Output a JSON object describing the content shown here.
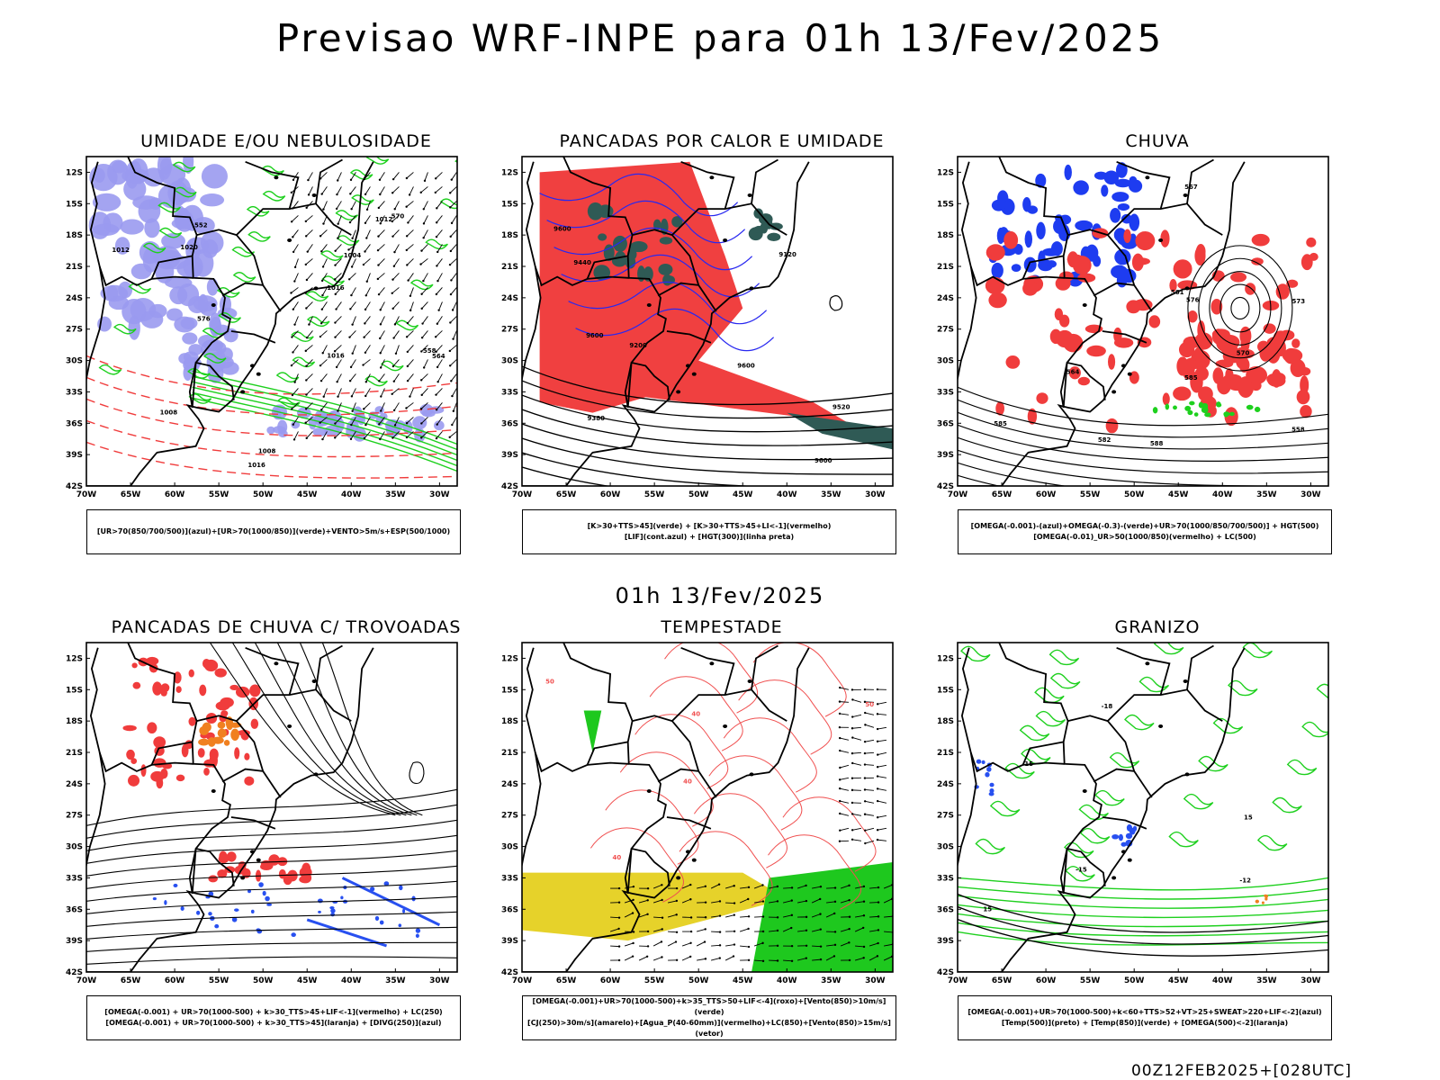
{
  "title": "Previsao WRF-INPE  para 01h 13/Fev/2025",
  "subtitle": "01h 13/Fev/2025",
  "footer": "00Z12FEB2025+[028UTC]",
  "axis": {
    "lat_labels": [
      "12S",
      "15S",
      "18S",
      "21S",
      "24S",
      "27S",
      "30S",
      "33S",
      "36S",
      "39S",
      "42S"
    ],
    "lon_labels": [
      "70W",
      "65W",
      "60W",
      "55W",
      "50W",
      "45W",
      "40W",
      "35W",
      "30W"
    ]
  },
  "panels": [
    {
      "title": "UMIDADE E/OU NEBULOSIDADE",
      "legend": [
        "[UR>70(850/700/500)](azul)+[UR>70(1000/850)](verde)+VENTO>5m/s+ESP(500/1000)"
      ],
      "contour_labels": [
        "1012",
        "1020",
        "1016",
        "1008",
        "1012",
        "1016",
        "1016",
        "576",
        "570",
        "564",
        "558",
        "552",
        "1004",
        "1008"
      ],
      "colors": {
        "blue": "#9a9af0",
        "green": "#1ed01e",
        "red": "#f03c3c"
      }
    },
    {
      "title": "PANCADAS POR CALOR E UMIDADE",
      "legend": [
        "[K>30+TTS>45](verde) + [K>30+TTS>45+LI<-1](vermelho)",
        "[LIF](cont.azul) + [HGT(300)](linha preta)"
      ],
      "contour_labels": [
        "9600",
        "9600",
        "9600",
        "9600",
        "9520",
        "9440",
        "9380",
        "9200",
        "9120"
      ],
      "colors": {
        "red": "#f04040",
        "teal": "#2f5a55",
        "blue": "#2828f0"
      }
    },
    {
      "title": "CHUVA",
      "legend": [
        "[OMEGA(-0.001)-(azul)+OMEGA(-0.3)-(verde)+UR>70(1000/850/700/500)] + HGT(500)",
        "[OMEGA(-0.01)_UR>50(1000/850)(vermelho) + LC(500)"
      ],
      "contour_labels": [
        "585",
        "585",
        "588",
        "576",
        "573",
        "570",
        "567",
        "564",
        "561",
        "558",
        "582"
      ],
      "colors": {
        "red": "#f03c3c",
        "blue": "#1e3cf0",
        "green": "#1ed01e"
      }
    },
    {
      "title": "PANCADAS DE CHUVA C/ TROVOADAS",
      "legend": [
        "[OMEGA(-0.001) + UR>70(1000-500) + k>30_TTS>45+LIF<-1](vermelho) + LC(250)",
        "[OMEGA(-0.001) + UR>70(1000-500) + k>30_TTS>45](laranja) + [DIVG(250)](azul)"
      ],
      "contour_labels": [],
      "colors": {
        "red": "#f03c3c",
        "orange": "#f08020",
        "blue": "#2850f0"
      }
    },
    {
      "title": "TEMPESTADE",
      "legend": [
        "[OMEGA(-0.001)+UR>70(1000-500)+k>35_TTS>50+LIF<-4](roxo)+[Vento(850)>10m/s](verde)",
        "[CJ(250)>30m/s](amarelo)+[Agua_P(40-60mm)](vermelho)+LC(850)+[Vento(850)>15m/s](vetor)"
      ],
      "contour_labels": [
        "40",
        "50",
        "40",
        "40",
        "50"
      ],
      "colors": {
        "yellow": "#e6d22a",
        "green": "#1ec81e",
        "red": "#f05050",
        "purple": "#b020c0"
      }
    },
    {
      "title": "GRANIZO",
      "legend": [
        "[OMEGA(-0.001)+UR>70(1000-500)+k<60+TTS>52+VT>25+SWEAT>220+LIF<-2](azul)",
        "[Temp(500)](preto) + [Temp(850)](verde) + [OMEGA(500)<-2](laranja)"
      ],
      "contour_labels": [
        "15",
        "-12",
        "-15",
        "-18",
        "15",
        "15"
      ],
      "colors": {
        "green": "#1ed01e",
        "blue": "#2850f0",
        "orange": "#f08020"
      }
    }
  ]
}
